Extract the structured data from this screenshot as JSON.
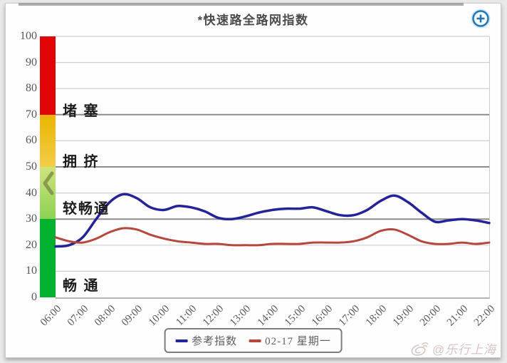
{
  "header": {
    "title": "*快速路全路网指数"
  },
  "chart_data": {
    "type": "line",
    "title": "*快速路全路网指数",
    "x_range": [
      6,
      22
    ],
    "x_labels": [
      "06:00",
      "07:00",
      "08:00",
      "09:00",
      "10:00",
      "11:00",
      "12:00",
      "13:00",
      "14:00",
      "15:00",
      "16:00",
      "17:00",
      "18:00",
      "19:00",
      "20:00",
      "21:00",
      "22:00"
    ],
    "ylim": [
      0,
      100
    ],
    "y_ticks": [
      0,
      10,
      20,
      30,
      40,
      50,
      60,
      70,
      80,
      90,
      100
    ],
    "dark_gridlines": [
      30,
      50,
      70
    ],
    "grid": true,
    "legend_position": "bottom",
    "bands": [
      {
        "label": "堵 塞",
        "range": [
          70,
          100
        ],
        "color_top": "#e10505",
        "color_bottom": "#e10505",
        "label_value": 72.5
      },
      {
        "label": "拥 挤",
        "range": [
          50,
          70
        ],
        "color_top": "#eab500",
        "color_bottom": "#f3cc48",
        "label_value": 53
      },
      {
        "label": "较畅通",
        "range": [
          30,
          50
        ],
        "color_top": "#cfe47c",
        "color_bottom": "#8cd253",
        "label_value": 35
      },
      {
        "label": "畅 通",
        "range": [
          0,
          30
        ],
        "color_top": "#00b22d",
        "color_bottom": "#00b22d",
        "label_value": 5.5
      }
    ],
    "x": [
      6,
      6.5,
      7,
      7.5,
      8,
      8.5,
      9,
      9.5,
      10,
      10.5,
      11,
      11.5,
      12,
      12.5,
      13,
      13.5,
      14,
      14.5,
      15,
      15.5,
      16,
      16.5,
      17,
      17.5,
      18,
      18.5,
      19,
      19.5,
      20,
      20.5,
      21,
      21.5,
      22
    ],
    "series": [
      {
        "name": "参考指数",
        "color": "#23239a",
        "width": 3.5,
        "values": [
          19.5,
          20,
          23,
          30,
          36.5,
          39.5,
          38,
          34.5,
          33.5,
          35,
          34.5,
          33,
          30.5,
          30,
          31,
          32.5,
          33.5,
          34,
          34,
          34.5,
          33,
          31.5,
          31.5,
          33.5,
          37,
          39,
          36.5,
          32.5,
          29,
          29.5,
          30,
          29.5,
          28.5
        ]
      },
      {
        "name": "02-17 星期一",
        "color": "#b5473c",
        "width": 3,
        "values": [
          23,
          21.5,
          21,
          22.5,
          25,
          26.5,
          26,
          24,
          22.5,
          21.5,
          21,
          20.5,
          20.5,
          20,
          20,
          20,
          20.5,
          20.5,
          20.5,
          21,
          21,
          21,
          21.5,
          23,
          25.5,
          26,
          24,
          21.5,
          20.5,
          20.5,
          21,
          20.5,
          21
        ]
      }
    ]
  },
  "colors": {
    "grid_light": "#cfcfcf",
    "grid_dark": "#8c8c8c",
    "zoom_button_blue": "#2077b8",
    "chevron_olive": "#7d8a4a"
  },
  "watermark": {
    "text": "@乐行上海"
  }
}
